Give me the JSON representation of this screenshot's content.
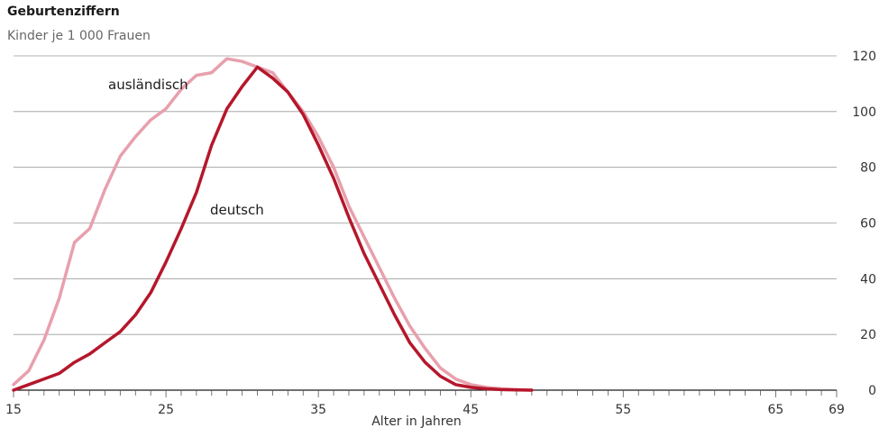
{
  "chart_data": {
    "type": "line",
    "title": "Geburtenziffern",
    "subtitle": "Kinder je 1 000 Frauen",
    "xlabel": "Alter in Jahren",
    "ylabel": "",
    "xlim": [
      15,
      69
    ],
    "ylim": [
      0,
      120
    ],
    "x_ticks": [
      15,
      25,
      35,
      45,
      55,
      65,
      69
    ],
    "y_ticks": [
      0,
      20,
      40,
      60,
      80,
      100,
      120
    ],
    "grid": true,
    "y_axis_side": "right",
    "series": [
      {
        "name": "ausländisch",
        "color": "#e8a0ad",
        "x": [
          15,
          16,
          17,
          18,
          19,
          20,
          21,
          22,
          23,
          24,
          25,
          26,
          27,
          28,
          29,
          30,
          31,
          32,
          33,
          34,
          35,
          36,
          37,
          38,
          39,
          40,
          41,
          42,
          43,
          44,
          45,
          46,
          47,
          48,
          49
        ],
        "y": [
          2,
          7,
          18,
          33,
          53,
          58,
          72,
          84,
          91,
          97,
          101,
          108,
          113,
          114,
          119,
          118,
          116,
          114,
          107,
          100,
          91,
          80,
          66,
          55,
          44,
          33,
          23,
          15,
          8,
          4,
          2,
          1,
          0.5,
          0.2,
          0
        ]
      },
      {
        "name": "deutsch",
        "color": "#b5172b",
        "x": [
          15,
          16,
          17,
          18,
          19,
          20,
          21,
          22,
          23,
          24,
          25,
          26,
          27,
          28,
          29,
          30,
          31,
          32,
          33,
          34,
          35,
          36,
          37,
          38,
          39,
          40,
          41,
          42,
          43,
          44,
          45,
          46,
          47,
          48,
          49
        ],
        "y": [
          0,
          2,
          4,
          6,
          10,
          13,
          17,
          21,
          27,
          35,
          46,
          58,
          71,
          88,
          101,
          109,
          116,
          112,
          107,
          99,
          88,
          76,
          62,
          49,
          38,
          27,
          17,
          10,
          5,
          2,
          1,
          0.5,
          0.2,
          0.1,
          0
        ]
      }
    ]
  }
}
